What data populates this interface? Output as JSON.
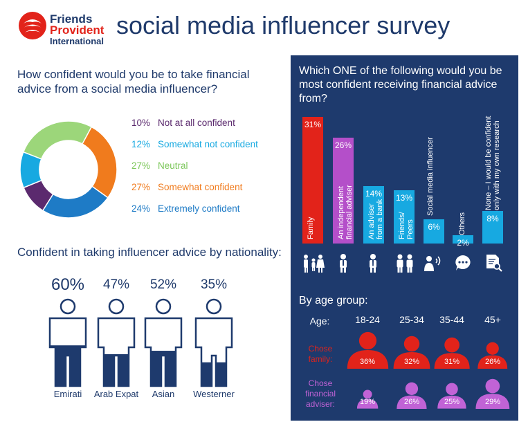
{
  "logo": {
    "line1": "Friends",
    "line2": "Provident",
    "line3": "International"
  },
  "title": "social media influencer survey",
  "confidence": {
    "question": "How confident would you be to take financial advice from a social media influencer?"
  },
  "nationality": {
    "title": "Confident in taking influencer advice by nationality:",
    "items": [
      {
        "label": "Emirati",
        "pct": "60%",
        "value": 60
      },
      {
        "label": "Arab Expat",
        "pct": "47%",
        "value": 47
      },
      {
        "label": "Asian",
        "pct": "52%",
        "value": 52
      },
      {
        "label": "Westerner",
        "pct": "35%",
        "value": 35
      }
    ]
  },
  "sources": {
    "question": "Which ONE of the following would you be most confident receiving financial advice from?"
  },
  "age": {
    "title": "By age group:",
    "age_label": "Age:",
    "groups": [
      "18-24",
      "25-34",
      "35-44",
      "45+"
    ],
    "family_label": "Chose family:",
    "adviser_label": "Chose financial adviser:",
    "family_pct": [
      "36%",
      "32%",
      "31%",
      "26%"
    ],
    "family_values": [
      36,
      32,
      31,
      26
    ],
    "adviser_pct": [
      "19%",
      "26%",
      "25%",
      "29%"
    ],
    "adviser_values": [
      19,
      26,
      25,
      29
    ]
  },
  "colors": {
    "navy": "#1e3a6d",
    "red": "#e2231a",
    "purple": "#b44fc9",
    "cyan": "#17a9e1",
    "green": "#9cd67a",
    "orange": "#f07b1d",
    "blue": "#1e7bc6",
    "dark_purple": "#5b2a6e"
  },
  "chart_data": [
    {
      "type": "pie",
      "title": "",
      "categories": [
        "Not at all confident",
        "Somewhat not confident",
        "Neutral",
        "Somewhat confident",
        "Extremely confident"
      ],
      "labels": [
        "10%",
        "12%",
        "27%",
        "27%",
        "24%"
      ],
      "values": [
        10,
        12,
        27,
        27,
        24
      ],
      "colors": [
        "#5b2a6e",
        "#17a9e1",
        "#9cd67a",
        "#f07b1d",
        "#1e7bc6"
      ]
    },
    {
      "type": "bar",
      "title": "",
      "categories": [
        "Family",
        "An independent financial adviser",
        "An adviser from a bank",
        "Friends/ Peers",
        "Social media influencer",
        "Others",
        "None – I would be confident only with my own research"
      ],
      "labels": [
        "31%",
        "26%",
        "14%",
        "13%",
        "6%",
        "2%",
        "8%"
      ],
      "values": [
        31,
        26,
        14,
        13,
        6,
        2,
        8
      ],
      "colors": [
        "#e2231a",
        "#b44fc9",
        "#17a9e1",
        "#17a9e1",
        "#17a9e1",
        "#17a9e1",
        "#17a9e1"
      ]
    }
  ]
}
